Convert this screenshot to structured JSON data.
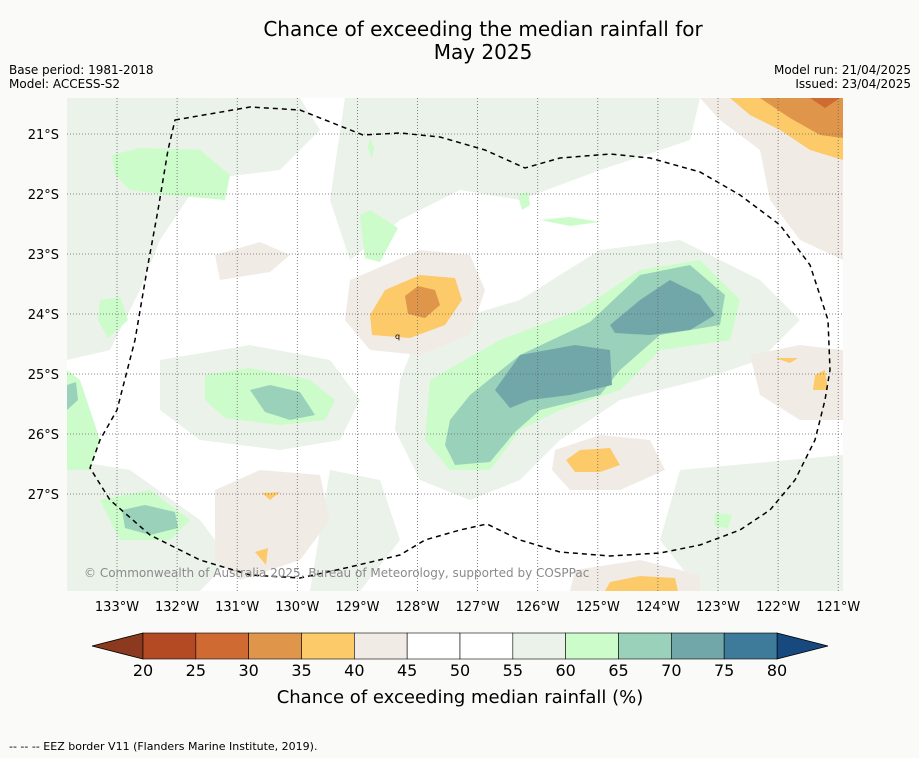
{
  "title_line1": "Chance of exceeding the median rainfall for",
  "title_line2": "May 2025",
  "base_period": "Base period: 1981-2018",
  "model": "Model: ACCESS-S2",
  "model_run": "Model run: 21/04/2025",
  "issued": "Issued: 23/04/2025",
  "copyright": "© Commonwealth of Australia 2025, Bureau of Meteorology, supported by COSPPac",
  "map": {
    "lat_labels": [
      "21°S",
      "22°S",
      "23°S",
      "24°S",
      "25°S",
      "26°S",
      "27°S"
    ],
    "lat_values": [
      -21,
      -22,
      -23,
      -24,
      -25,
      -26,
      -27
    ],
    "lon_labels": [
      "133°W",
      "132°W",
      "131°W",
      "130°W",
      "129°W",
      "128°W",
      "127°W",
      "126°W",
      "125°W",
      "124°W",
      "123°W",
      "122°W",
      "121°W"
    ],
    "lon_values": [
      -133,
      -132,
      -131,
      -130,
      -129,
      -128,
      -127,
      -126,
      -125,
      -124,
      -123,
      -122,
      -121
    ],
    "eez_border": "dashed black line"
  },
  "colorbar": {
    "label": "Chance of exceeding median rainfall (%)",
    "ticks": [
      "20",
      "25",
      "30",
      "35",
      "40",
      "45",
      "50",
      "55",
      "60",
      "65",
      "70",
      "75",
      "80"
    ],
    "colors": [
      "#b34a23",
      "#cf6a33",
      "#e0964a",
      "#fdca6a",
      "#f1ebe6",
      "#ffffff",
      "#ffffff",
      "#eaf2e9",
      "#cbfcca",
      "#9ad1ba",
      "#71a7a9",
      "#3e7b9b"
    ],
    "low_extend_color": "#8b3a20",
    "high_extend_color": "#17497e"
  },
  "footer": "--  --  -- EEZ border V11 (Flanders Marine Institute, 2019)."
}
